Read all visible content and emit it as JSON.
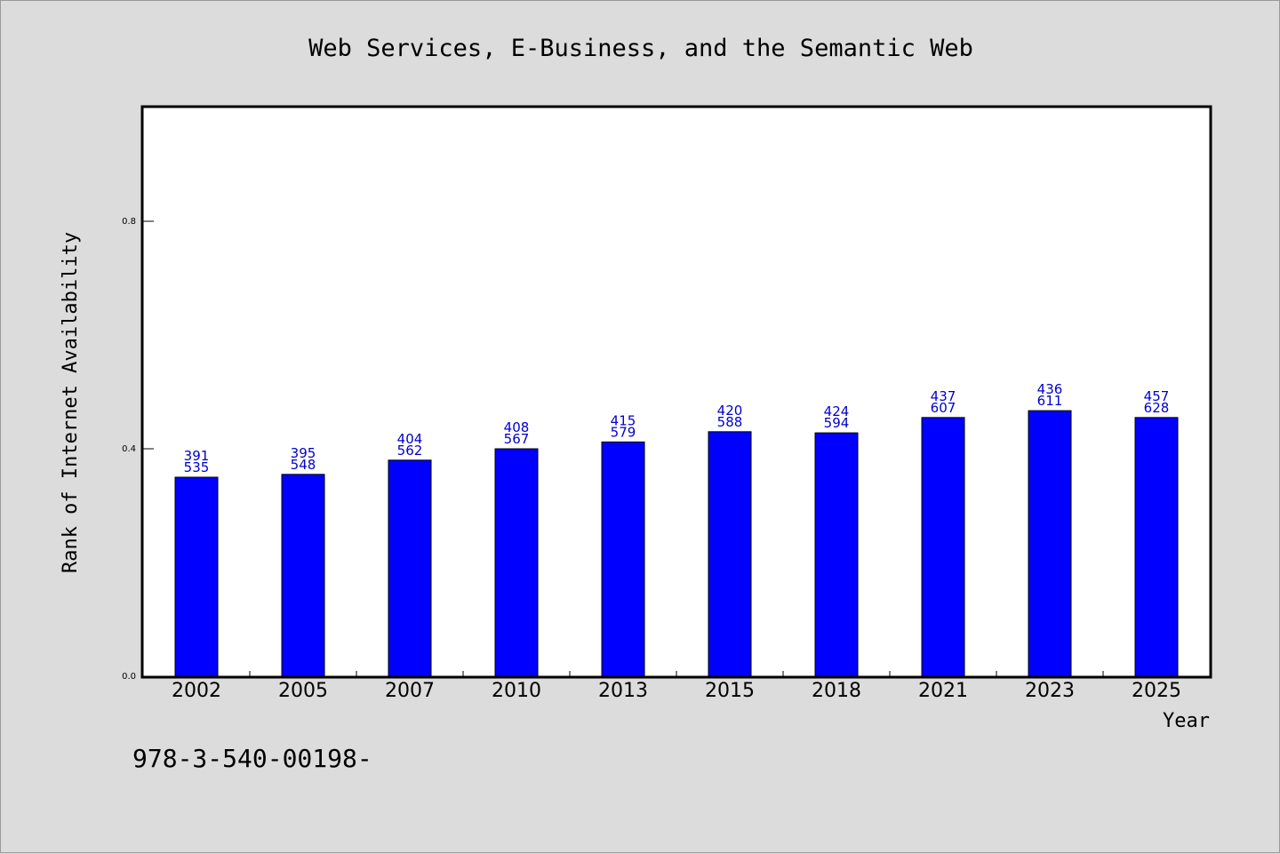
{
  "chart_data": {
    "type": "bar",
    "title": "Web Services, E-Business, and the Semantic Web",
    "xlabel": "Year",
    "ylabel": "Rank of Internet Availability",
    "categories": [
      "2002",
      "2005",
      "2007",
      "2010",
      "2013",
      "2015",
      "2018",
      "2021",
      "2023",
      "2025"
    ],
    "values": [
      0.35,
      0.355,
      0.38,
      0.4,
      0.412,
      0.43,
      0.428,
      0.455,
      0.467,
      0.455
    ],
    "label_top": [
      "391",
      "395",
      "404",
      "408",
      "415",
      "420",
      "424",
      "437",
      "436",
      "457"
    ],
    "label_bottom": [
      "535",
      "548",
      "562",
      "567",
      "579",
      "588",
      "594",
      "607",
      "611",
      "628"
    ],
    "ylim": [
      0,
      1.0
    ],
    "yticks": [
      0.0,
      0.4,
      0.8
    ],
    "ytick_labels": [
      "0.0",
      "0.4",
      "0.8"
    ],
    "grid": false,
    "bar_color": "#0000ff",
    "label_color": "#0000cc",
    "footer": "978-3-540-00198-"
  }
}
